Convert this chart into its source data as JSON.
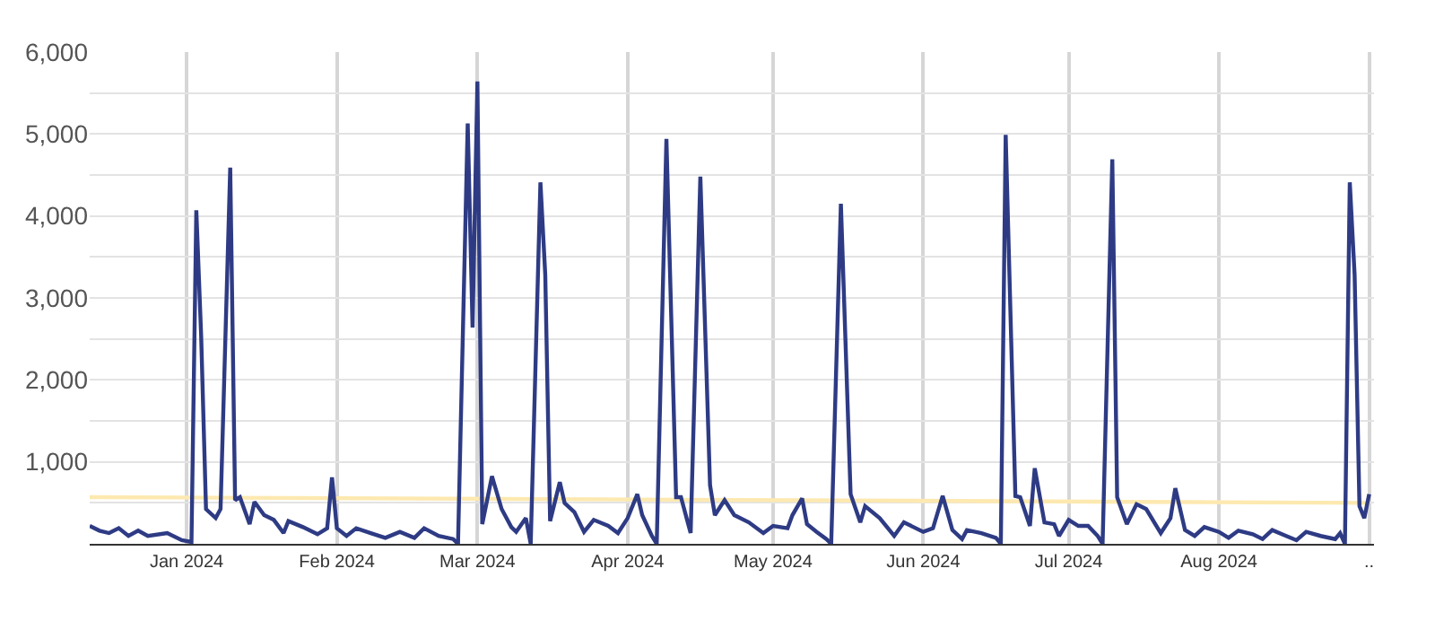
{
  "chart_data": {
    "type": "line",
    "xlim": [
      "2023-12-12",
      "2024-09-02"
    ],
    "ylim": [
      0,
      6000
    ],
    "xticks": [
      {
        "value": "2024-01-01",
        "label": "Jan 2024"
      },
      {
        "value": "2024-02-01",
        "label": "Feb 2024"
      },
      {
        "value": "2024-03-01",
        "label": "Mar 2024"
      },
      {
        "value": "2024-04-01",
        "label": "Apr 2024"
      },
      {
        "value": "2024-05-01",
        "label": "May 2024"
      },
      {
        "value": "2024-06-01",
        "label": "Jun 2024"
      },
      {
        "value": "2024-07-01",
        "label": "Jul 2024"
      },
      {
        "value": "2024-08-01",
        "label": "Aug 2024"
      },
      {
        "value": "2024-09-01",
        "label": ".."
      }
    ],
    "yticks": [
      {
        "value": 0,
        "label": null
      },
      {
        "value": 500,
        "label": null
      },
      {
        "value": 1000,
        "label": "1,000"
      },
      {
        "value": 1500,
        "label": null
      },
      {
        "value": 2000,
        "label": "2,000"
      },
      {
        "value": 2500,
        "label": null
      },
      {
        "value": 3000,
        "label": "3,000"
      },
      {
        "value": 3500,
        "label": null
      },
      {
        "value": 4000,
        "label": "4,000"
      },
      {
        "value": 4500,
        "label": null
      },
      {
        "value": 5000,
        "label": "5,000"
      },
      {
        "value": 5500,
        "label": null
      },
      {
        "value": 6000,
        "label": "6,000"
      }
    ],
    "grid": true,
    "marker": "none",
    "line_style": "solid",
    "series": [
      {
        "color": "#fde9b0",
        "x": [
          "2023-12-12",
          "2024-09-01"
        ],
        "values": [
          570,
          500
        ]
      },
      {
        "color": "#2e3b84",
        "x": [
          "2023-12-12",
          "2023-12-14",
          "2023-12-16",
          "2023-12-18",
          "2023-12-20",
          "2023-12-22",
          "2023-12-24",
          "2023-12-28",
          "2023-12-31",
          "2024-01-02",
          "2024-01-03",
          "2024-01-04",
          "2024-01-05",
          "2024-01-07",
          "2024-01-08",
          "2024-01-10",
          "2024-01-11",
          "2024-01-12",
          "2024-01-14",
          "2024-01-15",
          "2024-01-17",
          "2024-01-19",
          "2024-01-21",
          "2024-01-22",
          "2024-01-25",
          "2024-01-28",
          "2024-01-30",
          "2024-01-31",
          "2024-02-01",
          "2024-02-03",
          "2024-02-05",
          "2024-02-08",
          "2024-02-11",
          "2024-02-14",
          "2024-02-17",
          "2024-02-19",
          "2024-02-22",
          "2024-02-25",
          "2024-02-26",
          "2024-02-28",
          "2024-02-29",
          "2024-03-01",
          "2024-03-02",
          "2024-03-04",
          "2024-03-06",
          "2024-03-08",
          "2024-03-09",
          "2024-03-11",
          "2024-03-12",
          "2024-03-14",
          "2024-03-15",
          "2024-03-16",
          "2024-03-18",
          "2024-03-19",
          "2024-03-21",
          "2024-03-23",
          "2024-03-25",
          "2024-03-28",
          "2024-03-30",
          "2024-04-01",
          "2024-04-03",
          "2024-04-04",
          "2024-04-06",
          "2024-04-07",
          "2024-04-09",
          "2024-04-11",
          "2024-04-12",
          "2024-04-14",
          "2024-04-16",
          "2024-04-18",
          "2024-04-19",
          "2024-04-21",
          "2024-04-23",
          "2024-04-26",
          "2024-04-29",
          "2024-05-01",
          "2024-05-04",
          "2024-05-05",
          "2024-05-07",
          "2024-05-08",
          "2024-05-10",
          "2024-05-12",
          "2024-05-13",
          "2024-05-15",
          "2024-05-17",
          "2024-05-19",
          "2024-05-20",
          "2024-05-23",
          "2024-05-26",
          "2024-05-28",
          "2024-06-01",
          "2024-06-03",
          "2024-06-05",
          "2024-06-07",
          "2024-06-09",
          "2024-06-10",
          "2024-06-13",
          "2024-06-16",
          "2024-06-17",
          "2024-06-18",
          "2024-06-20",
          "2024-06-21",
          "2024-06-23",
          "2024-06-24",
          "2024-06-26",
          "2024-06-28",
          "2024-06-29",
          "2024-07-01",
          "2024-07-03",
          "2024-07-05",
          "2024-07-07",
          "2024-07-08",
          "2024-07-10",
          "2024-07-11",
          "2024-07-13",
          "2024-07-15",
          "2024-07-17",
          "2024-07-20",
          "2024-07-22",
          "2024-07-23",
          "2024-07-25",
          "2024-07-27",
          "2024-07-29",
          "2024-08-01",
          "2024-08-03",
          "2024-08-05",
          "2024-08-08",
          "2024-08-10",
          "2024-08-12",
          "2024-08-14",
          "2024-08-17",
          "2024-08-19",
          "2024-08-22",
          "2024-08-25",
          "2024-08-26",
          "2024-08-27",
          "2024-08-28",
          "2024-08-29",
          "2024-08-30",
          "2024-08-31",
          "2024-09-01"
        ],
        "values": [
          219,
          161,
          131,
          190,
          96,
          161,
          96,
          131,
          44,
          22,
          4070,
          2540,
          424,
          314,
          424,
          4590,
          533,
          569,
          240,
          511,
          350,
          292,
          131,
          278,
          204,
          117,
          190,
          810,
          190,
          96,
          190,
          131,
          73,
          146,
          73,
          190,
          96,
          58,
          0,
          5130,
          2640,
          5640,
          240,
          824,
          424,
          204,
          146,
          314,
          0,
          4410,
          3280,
          278,
          753,
          497,
          388,
          146,
          292,
          219,
          131,
          314,
          606,
          350,
          96,
          0,
          4940,
          569,
          569,
          131,
          4480,
          715,
          350,
          533,
          350,
          262,
          131,
          219,
          190,
          350,
          555,
          240,
          146,
          58,
          0,
          4150,
          606,
          262,
          460,
          314,
          96,
          262,
          146,
          190,
          584,
          168,
          58,
          168,
          131,
          73,
          0,
          4990,
          584,
          569,
          219,
          922,
          262,
          240,
          96,
          292,
          219,
          219,
          96,
          0,
          4690,
          569,
          240,
          483,
          424,
          131,
          314,
          678,
          168,
          96,
          204,
          146,
          73,
          161,
          117,
          58,
          168,
          117,
          44,
          146,
          96,
          58,
          131,
          0,
          4410,
          3280,
          460,
          314,
          606
        ]
      }
    ]
  }
}
